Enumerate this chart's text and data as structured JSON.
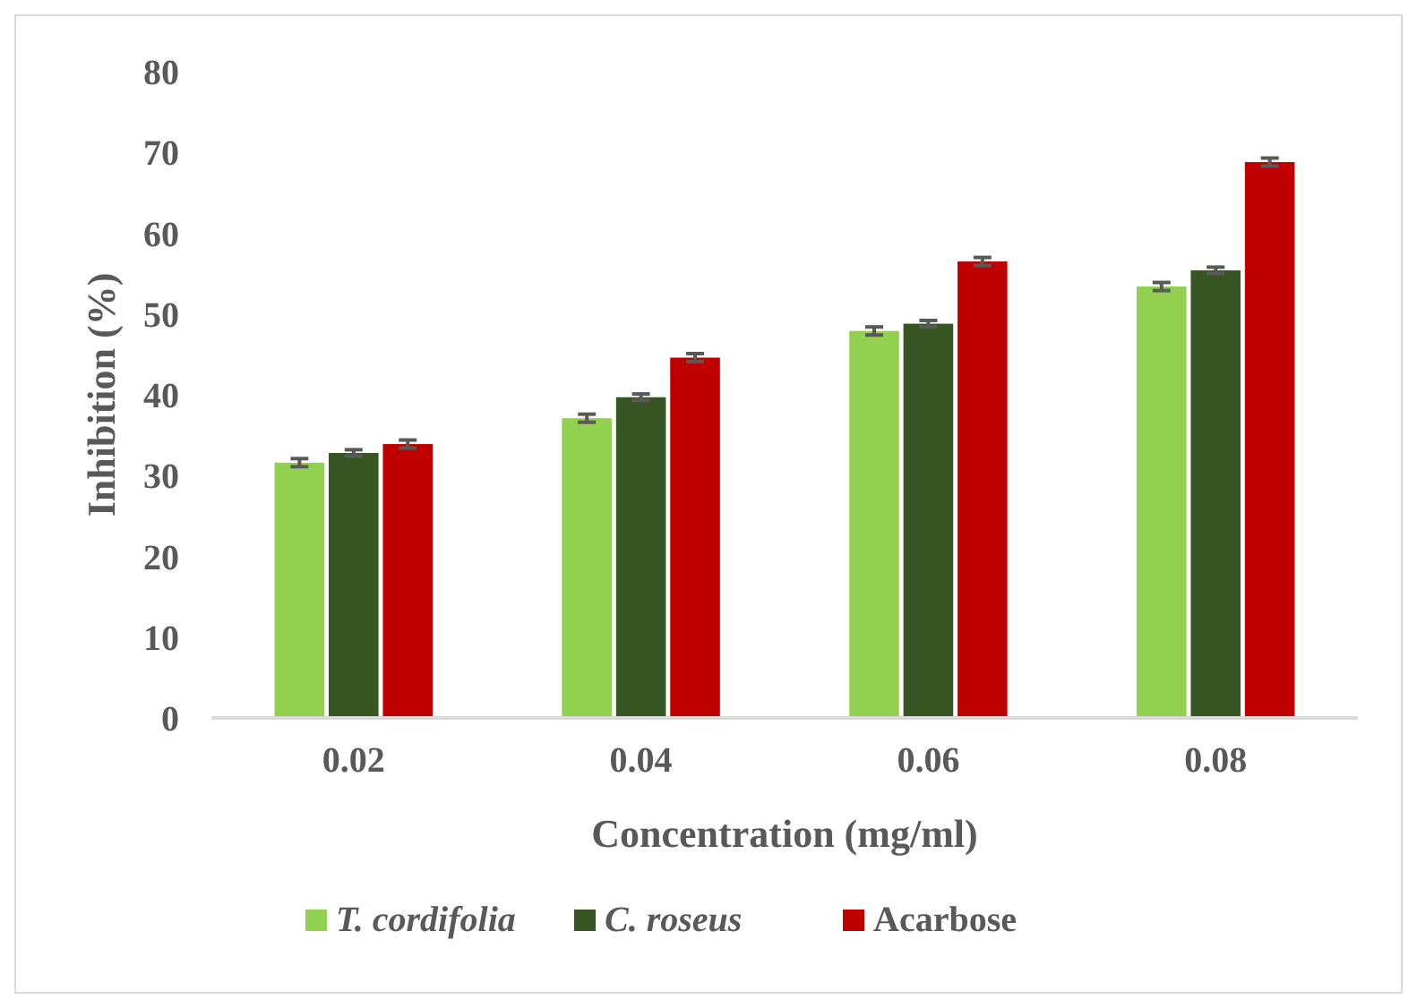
{
  "chart_data": {
    "type": "bar",
    "xlabel": "Concentration (mg/ml)",
    "ylabel": "Inhibition (%)",
    "categories": [
      "0.02",
      "0.04",
      "0.06",
      "0.08"
    ],
    "series": [
      {
        "name": "T. cordifolia",
        "color": "#92d050",
        "values": [
          31.6,
          37.1,
          47.9,
          53.4
        ],
        "errors": [
          0.5,
          0.5,
          0.5,
          0.5
        ]
      },
      {
        "name": "C. roseus",
        "color": "#375623",
        "values": [
          32.8,
          39.7,
          48.8,
          55.4
        ],
        "errors": [
          0.4,
          0.4,
          0.4,
          0.4
        ]
      },
      {
        "name": "Acarbose",
        "color": "#c00000",
        "values": [
          33.9,
          44.6,
          56.5,
          68.8
        ],
        "errors": [
          0.5,
          0.5,
          0.5,
          0.5
        ]
      }
    ],
    "ylim": [
      0,
      80
    ],
    "yticks": [
      0,
      10,
      20,
      30,
      40,
      50,
      60,
      70,
      80
    ],
    "grid": false,
    "legend": "bottom"
  }
}
